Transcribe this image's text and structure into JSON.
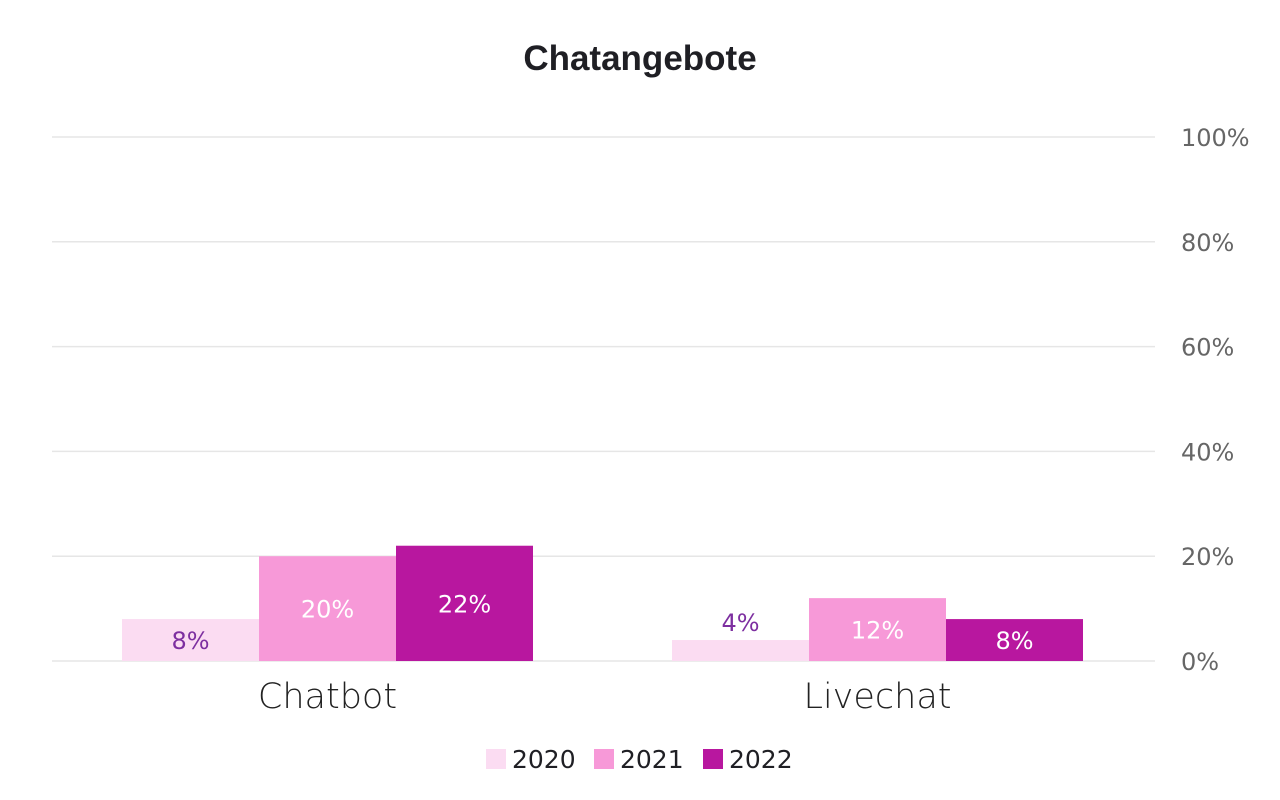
{
  "chart_data": {
    "type": "bar",
    "title": "Chatangebote",
    "categories": [
      "Chatbot",
      "Livechat"
    ],
    "series": [
      {
        "name": "2020",
        "values": [
          8,
          4
        ],
        "labels": [
          "8%",
          "4%"
        ],
        "color": "#fbdcf2",
        "label_color": "#7d2fa0"
      },
      {
        "name": "2021",
        "values": [
          20,
          12
        ],
        "labels": [
          "20%",
          "12%"
        ],
        "color": "#f799d8",
        "label_color": "#ffffff"
      },
      {
        "name": "2022",
        "values": [
          22,
          8
        ],
        "labels": [
          "22%",
          "8%"
        ],
        "color": "#b8179f",
        "label_color": "#ffffff"
      }
    ],
    "y_ticks": [
      0,
      20,
      40,
      60,
      80,
      100
    ],
    "y_tick_labels": [
      "0%",
      "20%",
      "40%",
      "60%",
      "80%",
      "100%"
    ],
    "ylim": [
      0,
      100
    ],
    "y_axis_position": "right",
    "grid": true,
    "legend_position": "bottom-center"
  }
}
